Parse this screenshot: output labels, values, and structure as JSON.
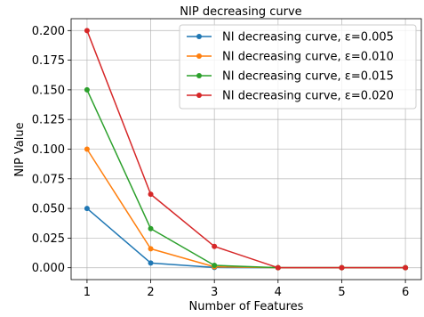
{
  "chart_data": {
    "type": "line",
    "title": "NIP decreasing curve",
    "xlabel": "Number of Features",
    "ylabel": "NIP Value",
    "x": [
      1,
      2,
      3,
      4,
      5,
      6
    ],
    "xlim": [
      0.75,
      6.25
    ],
    "ylim": [
      -0.01,
      0.21
    ],
    "xticks": [
      1,
      2,
      3,
      4,
      5,
      6
    ],
    "yticks": [
      0,
      0.025,
      0.05,
      0.075,
      0.1,
      0.125,
      0.15,
      0.175,
      0.2
    ],
    "ytick_labels": [
      "0.000",
      "0.025",
      "0.050",
      "0.075",
      "0.100",
      "0.125",
      "0.150",
      "0.175",
      "0.200"
    ],
    "grid": true,
    "legend_position": "top-right",
    "series": [
      {
        "name": "NI decreasing curve, ε=0.005",
        "color": "#1f77b4",
        "values": [
          0.05,
          0.004,
          0.0002,
          0.0,
          0.0,
          0.0
        ]
      },
      {
        "name": "NI decreasing curve, ε=0.010",
        "color": "#ff7f0e",
        "values": [
          0.1,
          0.016,
          0.0008,
          0.0,
          0.0,
          0.0
        ]
      },
      {
        "name": "NI decreasing curve, ε=0.015",
        "color": "#2ca02c",
        "values": [
          0.15,
          0.033,
          0.002,
          0.0,
          0.0,
          0.0
        ]
      },
      {
        "name": "NI decreasing curve, ε=0.020",
        "color": "#d62728",
        "values": [
          0.2,
          0.062,
          0.018,
          0.0,
          0.0,
          0.0
        ]
      }
    ]
  }
}
